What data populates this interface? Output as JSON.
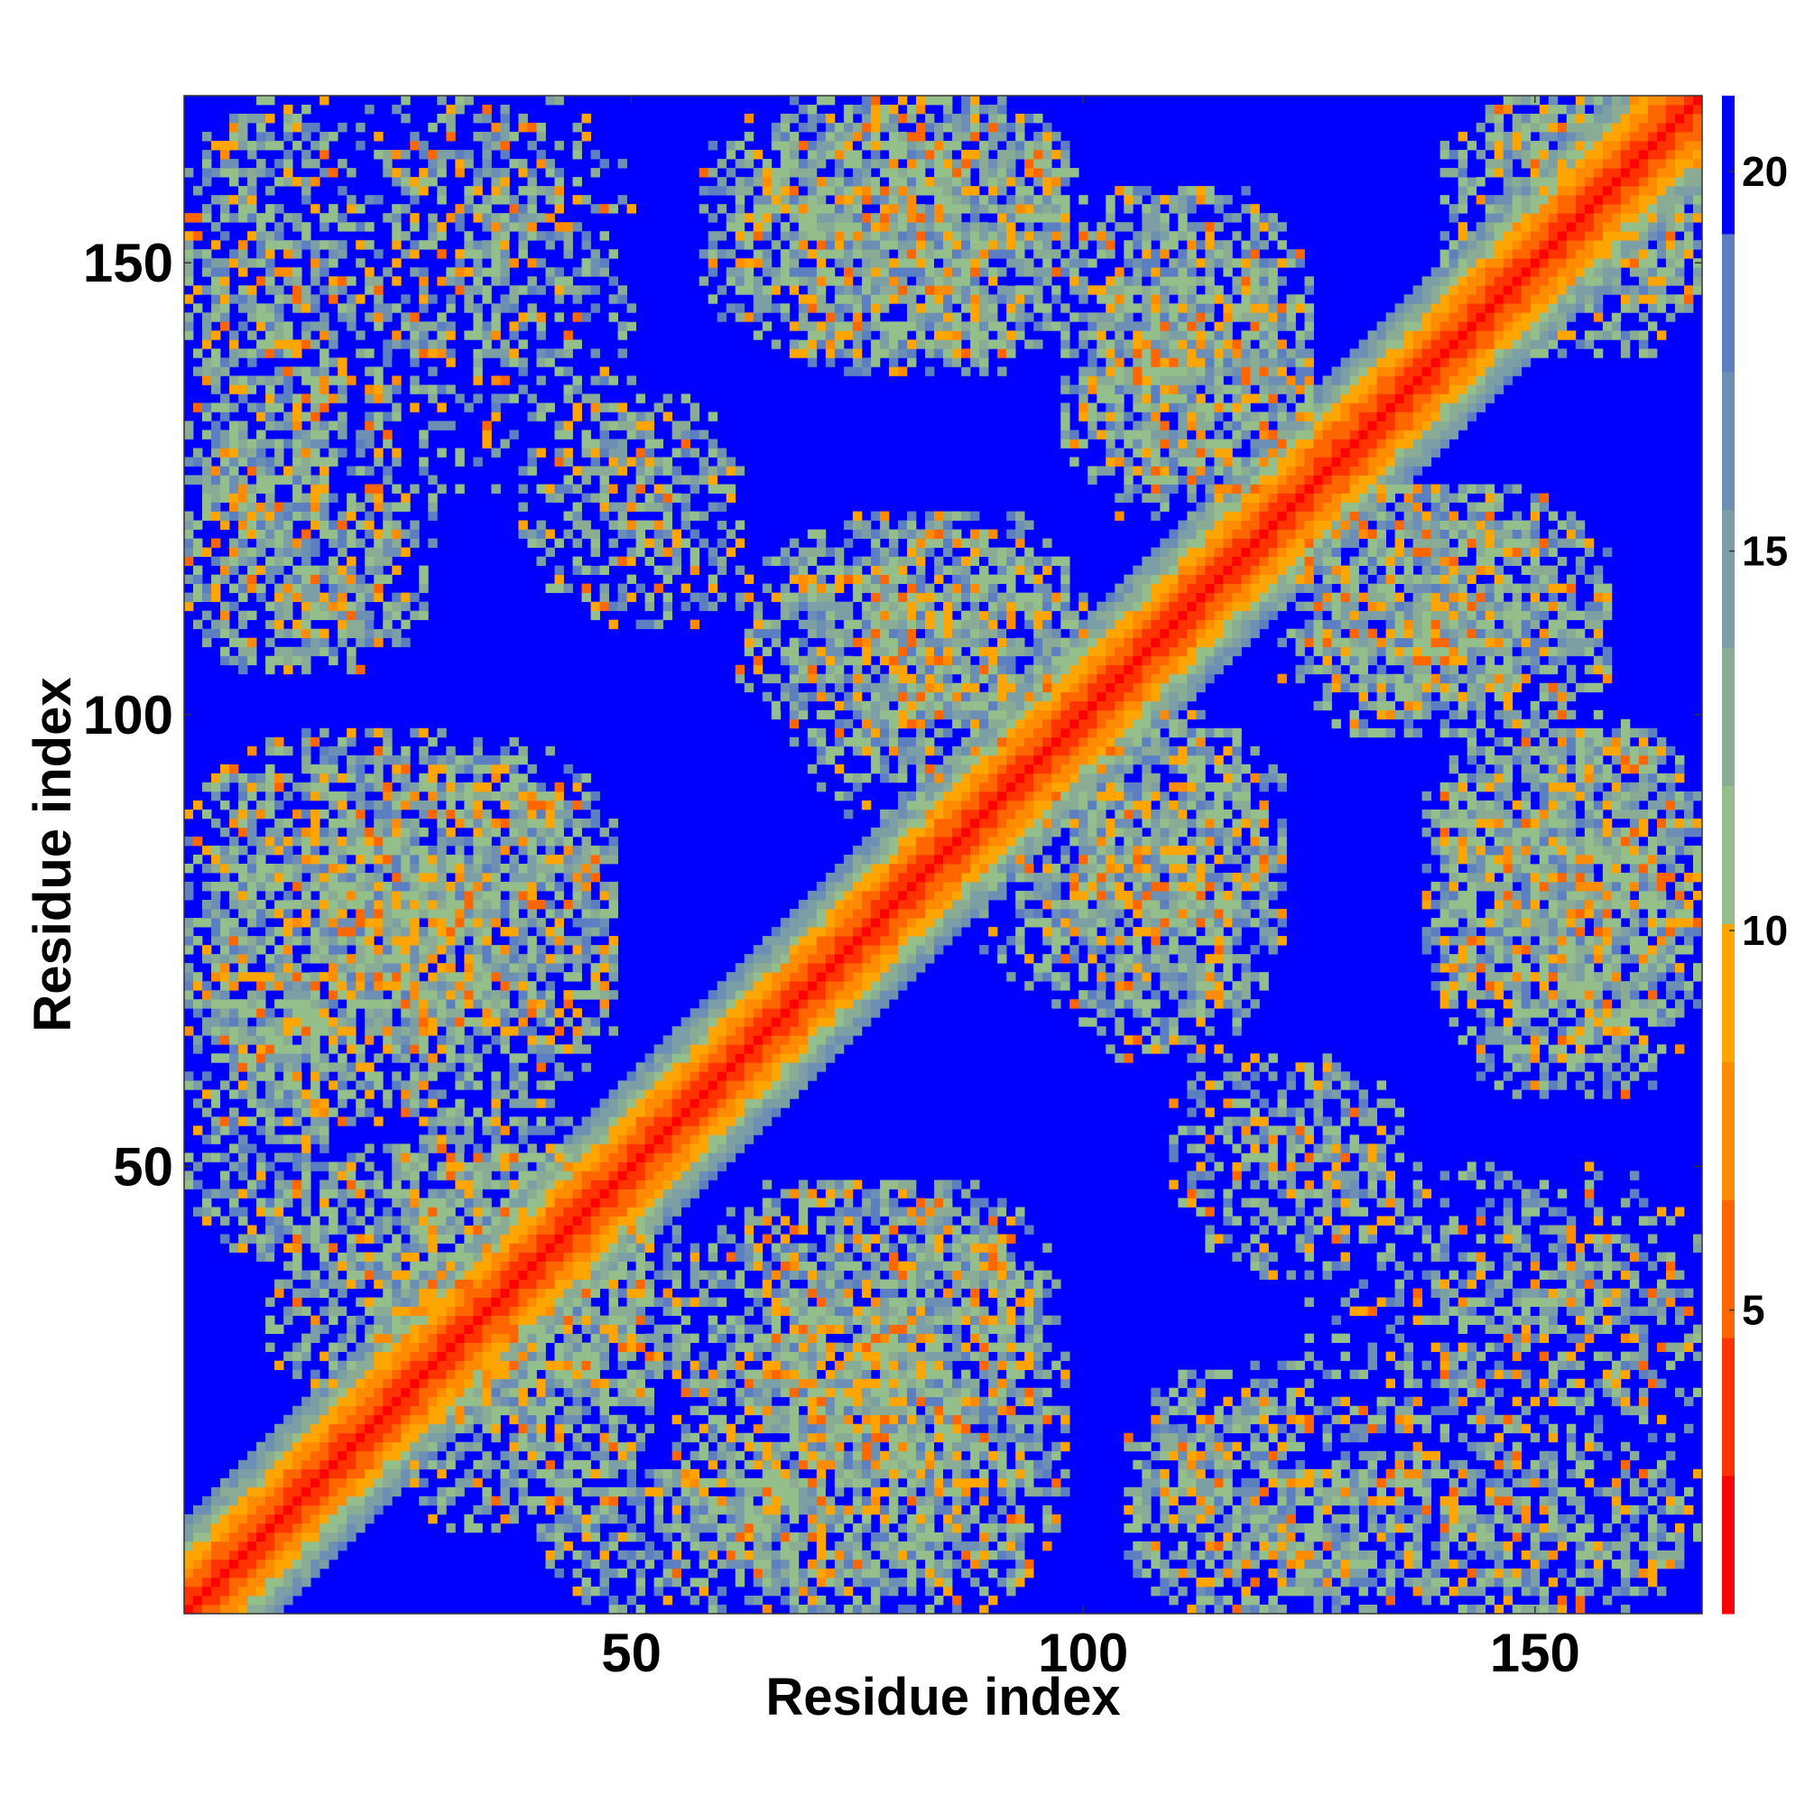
{
  "chart_data": {
    "type": "heatmap",
    "title": "",
    "xlabel": "Residue index",
    "ylabel": "Residue index",
    "n_residues": 168,
    "xlim": [
      1,
      168
    ],
    "ylim": [
      1,
      168
    ],
    "x_ticks": [
      50,
      100,
      150
    ],
    "y_ticks": [
      50,
      100,
      150
    ],
    "colorbar": {
      "range": [
        1,
        21
      ],
      "ticks": [
        5,
        10,
        15,
        20
      ],
      "colors": [
        "#ff0000",
        "#ff3300",
        "#ff6600",
        "#ff8c00",
        "#ffa500",
        "#94bf8b",
        "#8aab94",
        "#7c9fa5",
        "#6e8fb4",
        "#5b7fc0",
        "#0000ff"
      ]
    },
    "contact_regions": [
      {
        "x": [
          1,
          18
        ],
        "y": [
          120,
          168
        ],
        "density": "moderate"
      },
      {
        "x": [
          1,
          25
        ],
        "y": [
          105,
          125
        ],
        "density": "moderate"
      },
      {
        "x": [
          22,
          50
        ],
        "y": [
          125,
          168
        ],
        "density": "sparse"
      },
      {
        "x": [
          38,
          62
        ],
        "y": [
          112,
          133
        ],
        "density": "sparse"
      },
      {
        "x": [
          58,
          98
        ],
        "y": [
          140,
          168
        ],
        "density": "dense"
      },
      {
        "x": [
          98,
          125
        ],
        "y": [
          122,
          158
        ],
        "density": "dense"
      },
      {
        "x": [
          140,
          168
        ],
        "y": [
          145,
          168
        ],
        "density": "dense"
      },
      {
        "x": [
          68,
          100
        ],
        "y": [
          88,
          122
        ],
        "density": "dense"
      },
      {
        "x": [
          1,
          48
        ],
        "y": [
          60,
          98
        ],
        "density": "dense"
      },
      {
        "x": [
          1,
          20
        ],
        "y": [
          40,
          68
        ],
        "density": "moderate"
      },
      {
        "x": [
          10,
          55
        ],
        "y": [
          22,
          52
        ],
        "density": "dense"
      },
      {
        "x": [
          55,
          95
        ],
        "y": [
          1,
          48
        ],
        "density": "dense"
      },
      {
        "x": [
          98,
          120
        ],
        "y": [
          62,
          98
        ],
        "density": "dense"
      },
      {
        "x": [
          125,
          150
        ],
        "y": [
          100,
          125
        ],
        "density": "dense"
      },
      {
        "x": [
          138,
          168
        ],
        "y": [
          62,
          100
        ],
        "density": "dense"
      },
      {
        "x": [
          110,
          135
        ],
        "y": [
          42,
          62
        ],
        "density": "sparse"
      },
      {
        "x": [
          105,
          140
        ],
        "y": [
          1,
          28
        ],
        "density": "moderate"
      },
      {
        "x": [
          140,
          168
        ],
        "y": [
          1,
          45
        ],
        "density": "sparse"
      }
    ]
  }
}
